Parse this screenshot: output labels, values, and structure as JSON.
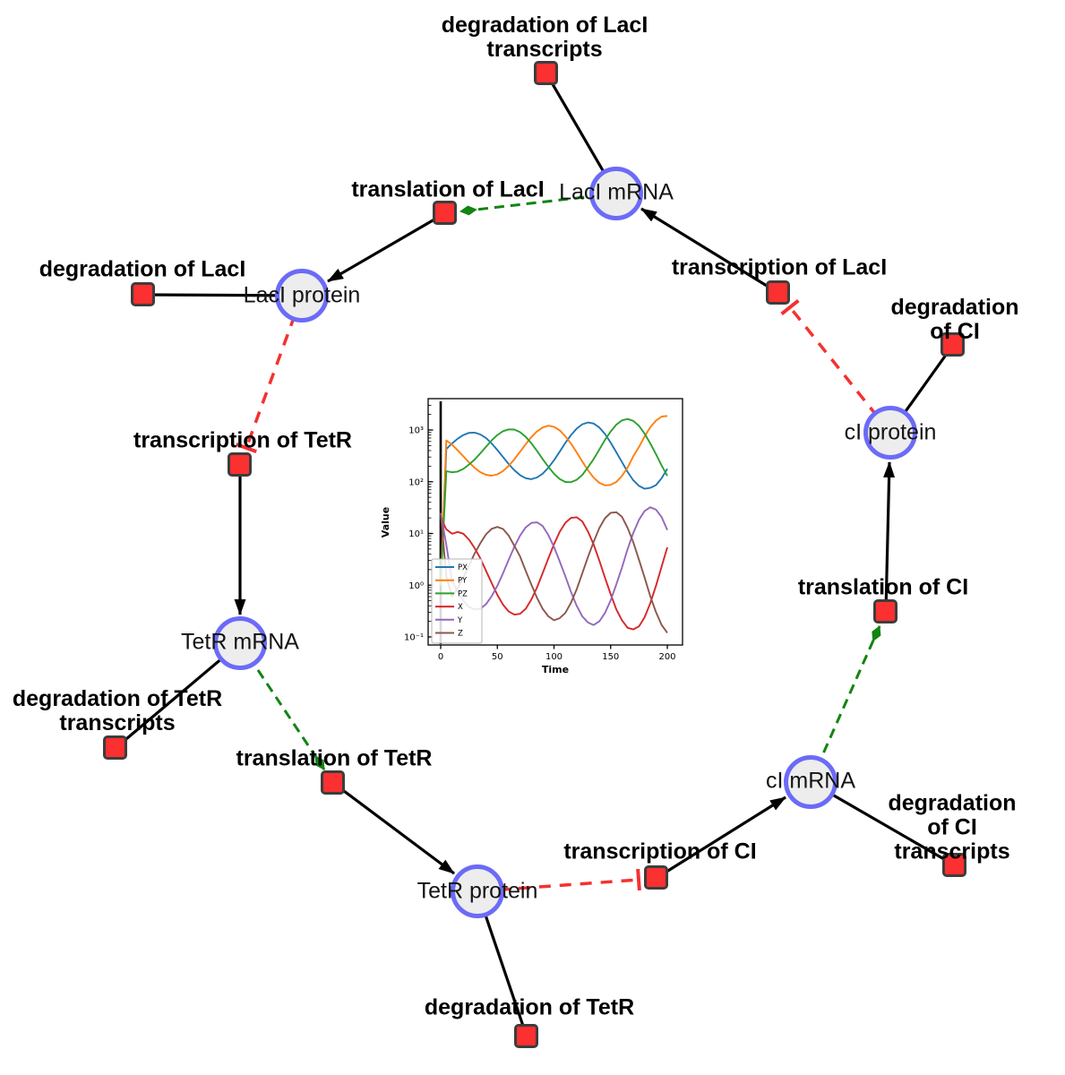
{
  "diagram": {
    "species": {
      "laci_mrna": "LacI mRNA",
      "laci_protein": "LacI protein",
      "ci_protein": "cI protein",
      "tetr_mrna": "TetR mRNA",
      "ci_mrna": "cI mRNA",
      "tetr_protein": "TetR protein"
    },
    "reactions": {
      "deg_laci_transcripts": "degradation of LacI\ntranscripts",
      "translation_laci": "translation of LacI",
      "deg_laci": "degradation of LacI",
      "transcription_laci": "transcription of LacI",
      "deg_ci": "degradation of CI",
      "transcription_tetr": "transcription of TetR",
      "deg_tetr_transcripts": "degradation of TetR\ntranscripts",
      "translation_tetr": "translation of TetR",
      "translation_ci": "translation of CI",
      "transcription_ci": "transcription of CI",
      "deg_ci_transcripts": "degradation of CI\ntranscripts",
      "deg_tetr": "degradation of TetR"
    },
    "edges": [
      {
        "source": "LacI mRNA",
        "target": "degradation of LacI transcripts",
        "type": "consumption"
      },
      {
        "source": "transcription of LacI",
        "target": "LacI mRNA",
        "type": "production"
      },
      {
        "source": "LacI mRNA",
        "target": "translation of LacI",
        "type": "activation"
      },
      {
        "source": "translation of LacI",
        "target": "LacI protein",
        "type": "production"
      },
      {
        "source": "LacI protein",
        "target": "degradation of LacI",
        "type": "consumption"
      },
      {
        "source": "LacI protein",
        "target": "transcription of TetR",
        "type": "inhibition"
      },
      {
        "source": "transcription of TetR",
        "target": "TetR mRNA",
        "type": "production"
      },
      {
        "source": "TetR mRNA",
        "target": "degradation of TetR transcripts",
        "type": "consumption"
      },
      {
        "source": "TetR mRNA",
        "target": "translation of TetR",
        "type": "activation"
      },
      {
        "source": "translation of TetR",
        "target": "TetR protein",
        "type": "production"
      },
      {
        "source": "TetR protein",
        "target": "degradation of TetR",
        "type": "consumption"
      },
      {
        "source": "TetR protein",
        "target": "transcription of CI",
        "type": "inhibition"
      },
      {
        "source": "transcription of CI",
        "target": "cI mRNA",
        "type": "production"
      },
      {
        "source": "cI mRNA",
        "target": "degradation of CI transcripts",
        "type": "consumption"
      },
      {
        "source": "cI mRNA",
        "target": "translation of CI",
        "type": "activation"
      },
      {
        "source": "translation of CI",
        "target": "cI protein",
        "type": "production"
      },
      {
        "source": "cI protein",
        "target": "degradation of CI",
        "type": "consumption"
      },
      {
        "source": "cI protein",
        "target": "transcription of LacI",
        "type": "inhibition"
      }
    ],
    "colors": {
      "species_fill": "#ededed",
      "species_border": "#6b6bf8",
      "reaction_fill": "#fb3030",
      "reaction_border": "#3d3d3d",
      "edge_solid": "#000000",
      "edge_activation": "#128412",
      "edge_inhibition": "#f43131"
    }
  },
  "chart_data": {
    "type": "line",
    "title": "",
    "xlabel": "Time",
    "ylabel": "Value",
    "yscale": "log",
    "xlim": [
      -11,
      210
    ],
    "ylim": [
      0.07,
      4000
    ],
    "xticks": [
      0,
      50,
      100,
      150,
      200
    ],
    "yticks": [
      {
        "value": 0.1,
        "label": "10⁻¹"
      },
      {
        "value": 1,
        "label": "10⁰"
      },
      {
        "value": 10,
        "label": "10¹"
      },
      {
        "value": 100,
        "label": "10²"
      },
      {
        "value": 1000,
        "label": "10³"
      }
    ],
    "event_line_x": 0,
    "legend_position": "lower left",
    "x": [
      0,
      5,
      10,
      15,
      20,
      25,
      30,
      35,
      40,
      45,
      50,
      55,
      60,
      65,
      70,
      75,
      80,
      85,
      90,
      95,
      100,
      105,
      110,
      115,
      120,
      125,
      130,
      135,
      140,
      145,
      150,
      155,
      160,
      165,
      170,
      175,
      180,
      185,
      190,
      195,
      200
    ],
    "series": [
      {
        "name": "PX",
        "color": "#1f77b4",
        "values": [
          1,
          430,
          550,
          680,
          800,
          880,
          890,
          820,
          700,
          550,
          410,
          300,
          220,
          167,
          134,
          117,
          112,
          121,
          143,
          187,
          260,
          380,
          560,
          800,
          1060,
          1290,
          1400,
          1330,
          1120,
          840,
          570,
          370,
          240,
          154,
          107,
          83,
          73,
          76,
          86,
          117,
          177
        ]
      },
      {
        "name": "PY",
        "color": "#ff7f0e",
        "values": [
          1,
          630,
          520,
          405,
          310,
          237,
          186,
          153,
          136,
          131,
          139,
          161,
          203,
          272,
          380,
          530,
          730,
          940,
          1120,
          1210,
          1150,
          990,
          760,
          545,
          370,
          246,
          167,
          120,
          95,
          85,
          87,
          99,
          130,
          188,
          310,
          470,
          750,
          1130,
          1520,
          1820,
          1870
        ]
      },
      {
        "name": "PZ",
        "color": "#2ca02c",
        "values": [
          1,
          160,
          152,
          157,
          177,
          215,
          268,
          355,
          475,
          630,
          800,
          950,
          1030,
          1020,
          910,
          740,
          555,
          395,
          275,
          194,
          143,
          113,
          99,
          98,
          109,
          135,
          190,
          275,
          420,
          645,
          940,
          1270,
          1530,
          1630,
          1500,
          1200,
          850,
          550,
          340,
          205,
          130
        ]
      },
      {
        "name": "X",
        "color": "#d62728",
        "values": [
          20,
          12,
          9.9,
          10.7,
          9.9,
          7.6,
          5.2,
          3.3,
          1.9,
          1.1,
          0.65,
          0.42,
          0.31,
          0.27,
          0.28,
          0.35,
          0.53,
          0.9,
          1.7,
          3.3,
          6.2,
          10.7,
          16,
          20,
          20.6,
          17.1,
          10.9,
          6.1,
          3,
          1.4,
          0.67,
          0.34,
          0.21,
          0.15,
          0.14,
          0.16,
          0.24,
          0.45,
          0.98,
          2.3,
          5.4
        ]
      },
      {
        "name": "Y",
        "color": "#9467bd",
        "values": [
          25,
          6,
          1.2,
          0.74,
          0.5,
          0.38,
          0.34,
          0.35,
          0.43,
          0.61,
          0.98,
          1.7,
          3.1,
          5.5,
          9.1,
          13.1,
          16,
          16.4,
          14,
          9.3,
          5.5,
          2.9,
          1.5,
          0.74,
          0.4,
          0.25,
          0.19,
          0.17,
          0.2,
          0.29,
          0.51,
          1.04,
          2.2,
          5,
          10.2,
          18.4,
          27.2,
          32.2,
          28.9,
          20.7,
          11.7
        ]
      },
      {
        "name": "Z",
        "color": "#8c564b",
        "values": [
          25,
          1.5,
          0.6,
          0.88,
          1.4,
          2.4,
          4.1,
          6.5,
          9.6,
          12.3,
          13.4,
          12.2,
          9.1,
          5.8,
          3.6,
          1.9,
          1.03,
          0.57,
          0.35,
          0.25,
          0.21,
          0.23,
          0.29,
          0.46,
          0.83,
          1.7,
          3.5,
          6.9,
          12.7,
          19.7,
          25.1,
          25.7,
          21,
          12.8,
          6.8,
          3.1,
          1.4,
          0.61,
          0.3,
          0.17,
          0.12
        ]
      }
    ]
  }
}
